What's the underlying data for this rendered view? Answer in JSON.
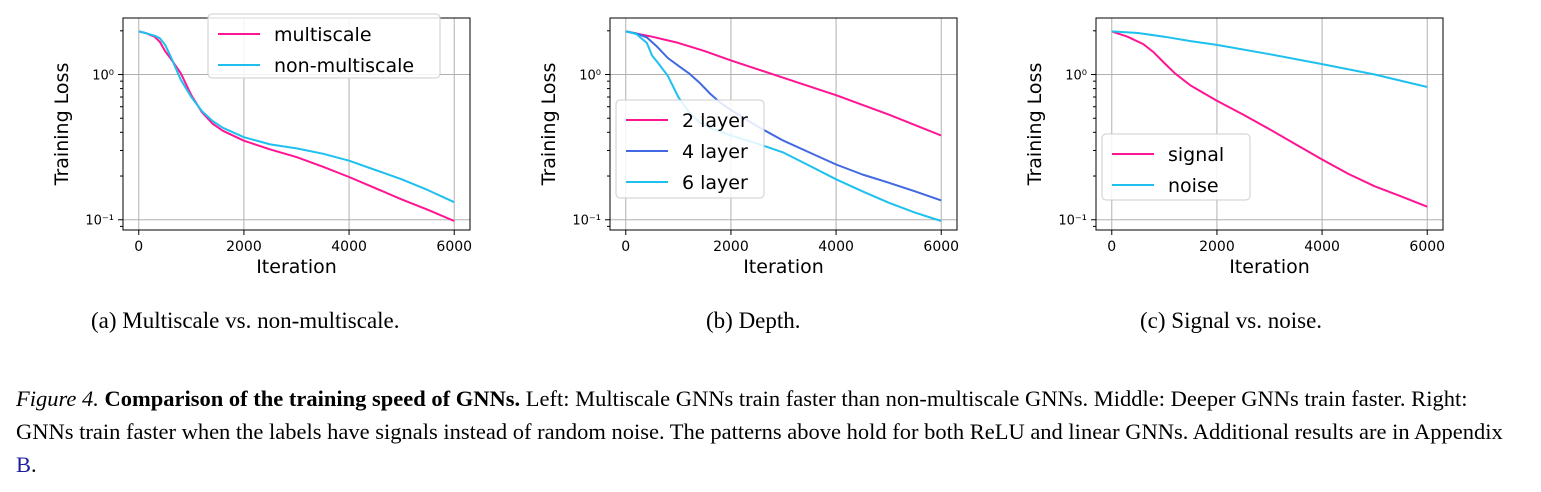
{
  "colors": {
    "pink": "#ff1493",
    "blue": "#4169e1",
    "cyan": "#1ec0ee",
    "grid": "#b0b0b0"
  },
  "panels": [
    {
      "subcaption": "(a) Multiscale vs. non-multiscale."
    },
    {
      "subcaption": "(b) Depth."
    },
    {
      "subcaption": "(c) Signal vs. noise."
    }
  ],
  "caption": {
    "label": "Figure 4.",
    "title": "Comparison of the training speed of GNNs.",
    "body": " Left: Multiscale GNNs train faster than non-multiscale GNNs. Middle: Deeper GNNs train faster. Right: GNNs train faster when the labels have signals instead of random noise. The patterns above hold for both ReLU and linear GNNs. Additional results are in Appendix ",
    "ref": "B",
    "end": "."
  },
  "chart_data": [
    {
      "type": "line",
      "xlabel": "Iteration",
      "ylabel": "Training Loss",
      "xlim": [
        -300,
        6300
      ],
      "ylim": [
        0.085,
        2.45
      ],
      "yscale": "log",
      "xticks": [
        0,
        2000,
        4000,
        6000
      ],
      "yticks": [
        {
          "value": 1,
          "label": "10⁰"
        },
        {
          "value": 0.1,
          "label": "10⁻¹"
        }
      ],
      "grid": true,
      "legend_position": "top-right",
      "series": [
        {
          "name": "multiscale",
          "color": "#ff1493",
          "x": [
            0,
            150,
            300,
            400,
            500,
            600,
            800,
            1000,
            1200,
            1400,
            1600,
            2000,
            2500,
            3000,
            3500,
            4000,
            4500,
            5000,
            5500,
            6000
          ],
          "y": [
            1.98,
            1.92,
            1.82,
            1.68,
            1.45,
            1.3,
            1.02,
            0.72,
            0.55,
            0.46,
            0.41,
            0.35,
            0.305,
            0.27,
            0.232,
            0.197,
            0.165,
            0.138,
            0.117,
            0.098
          ]
        },
        {
          "name": "non-multiscale",
          "color": "#1ec0ee",
          "x": [
            0,
            150,
            300,
            400,
            500,
            600,
            800,
            1000,
            1200,
            1400,
            1600,
            2000,
            2500,
            3000,
            3500,
            4000,
            4500,
            5000,
            5500,
            6000
          ],
          "y": [
            1.98,
            1.92,
            1.85,
            1.78,
            1.6,
            1.35,
            0.92,
            0.7,
            0.56,
            0.48,
            0.43,
            0.37,
            0.33,
            0.31,
            0.285,
            0.255,
            0.22,
            0.19,
            0.16,
            0.132
          ]
        }
      ]
    },
    {
      "type": "line",
      "xlabel": "Iteration",
      "ylabel": "Training Loss",
      "xlim": [
        -300,
        6300
      ],
      "ylim": [
        0.085,
        2.45
      ],
      "yscale": "log",
      "xticks": [
        0,
        2000,
        4000,
        6000
      ],
      "yticks": [
        {
          "value": 1,
          "label": "10⁰"
        },
        {
          "value": 0.1,
          "label": "10⁻¹"
        }
      ],
      "grid": true,
      "legend_position": "lower-left",
      "series": [
        {
          "name": "2 layer",
          "color": "#ff1493",
          "x": [
            0,
            500,
            1000,
            1500,
            2000,
            3000,
            4000,
            5000,
            6000
          ],
          "y": [
            1.98,
            1.82,
            1.65,
            1.45,
            1.25,
            0.95,
            0.72,
            0.53,
            0.38
          ]
        },
        {
          "name": "4 layer",
          "color": "#4169e1",
          "x": [
            0,
            200,
            400,
            600,
            800,
            1000,
            1200,
            1400,
            1600,
            1800,
            2000,
            2500,
            3000,
            3500,
            4000,
            4500,
            5000,
            5500,
            6000
          ],
          "y": [
            1.98,
            1.92,
            1.8,
            1.55,
            1.3,
            1.15,
            1.02,
            0.88,
            0.74,
            0.64,
            0.57,
            0.44,
            0.35,
            0.29,
            0.24,
            0.205,
            0.18,
            0.157,
            0.136
          ]
        },
        {
          "name": "6 layer",
          "color": "#1ec0ee",
          "x": [
            0,
            200,
            400,
            500,
            600,
            800,
            1000,
            1200,
            1400,
            1600,
            2000,
            2500,
            3000,
            3500,
            4000,
            4500,
            5000,
            5500,
            6000
          ],
          "y": [
            1.98,
            1.9,
            1.65,
            1.35,
            1.22,
            0.98,
            0.7,
            0.55,
            0.47,
            0.43,
            0.38,
            0.335,
            0.29,
            0.235,
            0.19,
            0.157,
            0.131,
            0.112,
            0.098
          ]
        }
      ]
    },
    {
      "type": "line",
      "xlabel": "Iteration",
      "ylabel": "Training Loss",
      "xlim": [
        -300,
        6300
      ],
      "ylim": [
        0.085,
        2.45
      ],
      "yscale": "log",
      "xticks": [
        0,
        2000,
        4000,
        6000
      ],
      "yticks": [
        {
          "value": 1,
          "label": "10⁰"
        },
        {
          "value": 0.1,
          "label": "10⁻¹"
        }
      ],
      "grid": true,
      "legend_position": "lower-left",
      "series": [
        {
          "name": "signal",
          "color": "#ff1493",
          "x": [
            0,
            300,
            600,
            800,
            1000,
            1200,
            1500,
            2000,
            2500,
            3000,
            3500,
            4000,
            4500,
            5000,
            5500,
            6000
          ],
          "y": [
            1.98,
            1.82,
            1.62,
            1.42,
            1.2,
            1.02,
            0.84,
            0.66,
            0.53,
            0.42,
            0.33,
            0.26,
            0.207,
            0.17,
            0.145,
            0.123
          ]
        },
        {
          "name": "noise",
          "color": "#1ec0ee",
          "x": [
            0,
            500,
            1000,
            1500,
            2000,
            3000,
            4000,
            5000,
            6000
          ],
          "y": [
            1.98,
            1.93,
            1.82,
            1.7,
            1.6,
            1.38,
            1.18,
            1.0,
            0.82
          ]
        }
      ]
    }
  ]
}
